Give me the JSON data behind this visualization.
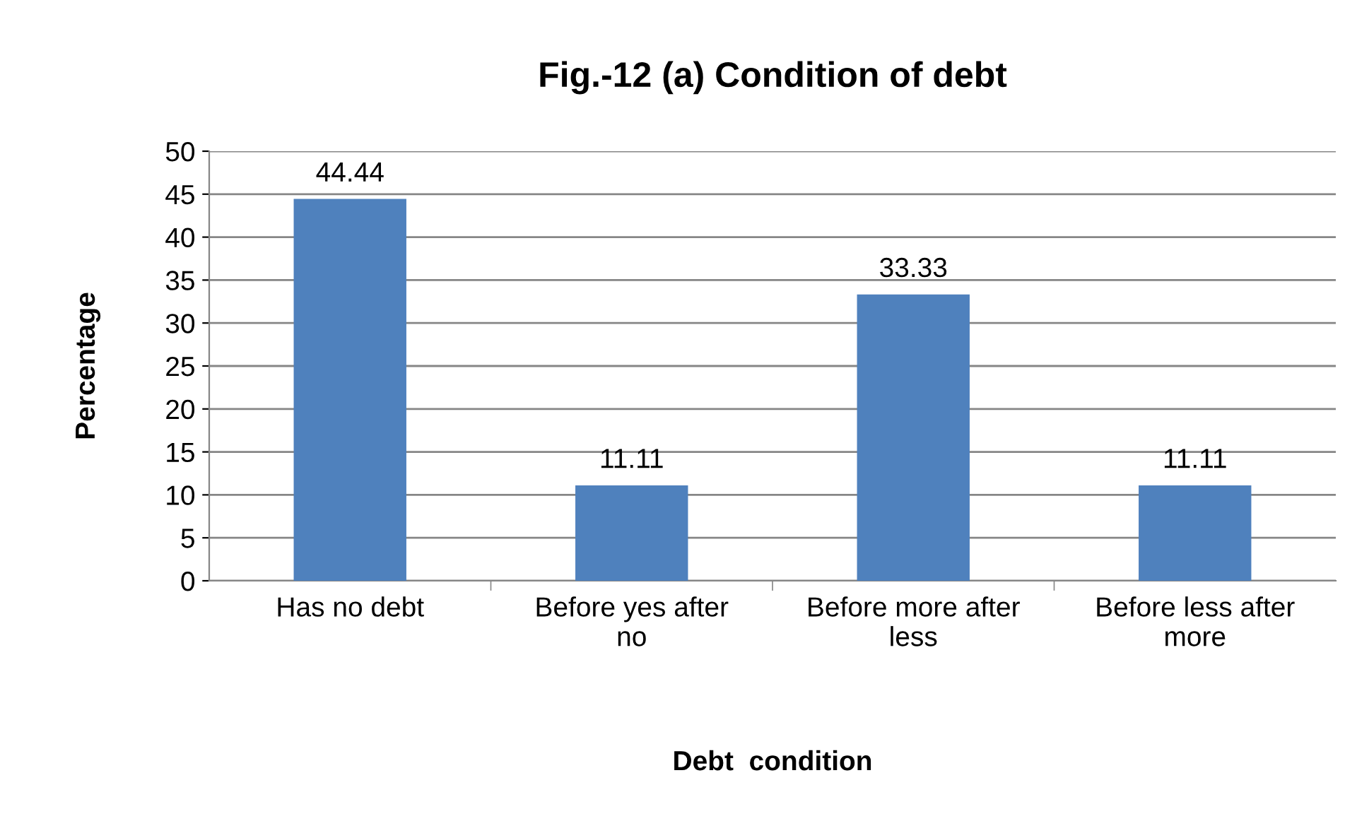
{
  "chart_data": {
    "type": "bar",
    "title": "Fig.-12 (a) Condition of debt",
    "xlabel": "Debt  condition",
    "ylabel": "Percentage",
    "categories": [
      "Has no debt",
      "Before yes after no",
      "Before more after less",
      "Before less after more"
    ],
    "values": [
      44.44,
      11.11,
      33.33,
      11.11
    ],
    "color": "#4f81bd",
    "ylim": [
      0,
      50
    ],
    "yticks": [
      0,
      5,
      10,
      15,
      20,
      25,
      30,
      35,
      40,
      45,
      50
    ],
    "grid": "y",
    "legend": false,
    "data_labels": true
  }
}
